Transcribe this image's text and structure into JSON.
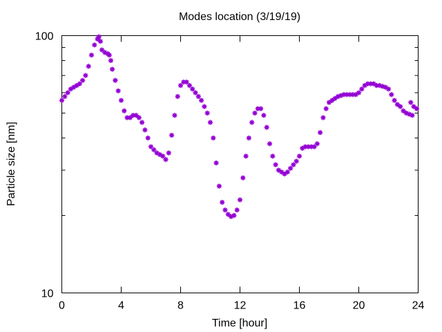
{
  "chart_data": {
    "type": "scatter",
    "title": "Modes location (3/19/19)",
    "xlabel": "Time [hour]",
    "ylabel": "Particle size [nm]",
    "xlim": [
      0,
      24
    ],
    "ylim": [
      10,
      100
    ],
    "yscale": "log",
    "xticks": [
      0,
      4,
      8,
      12,
      16,
      20,
      24
    ],
    "xtick_labels": [
      "0",
      "4",
      "8",
      "12",
      "16",
      "20",
      "24"
    ],
    "yticks": [
      10,
      100
    ],
    "ytick_labels": [
      "10",
      "100"
    ],
    "grid": false,
    "marker": "asterisk",
    "color": "#9400d3",
    "series": [
      {
        "name": "",
        "points": [
          [
            0.0,
            56
          ],
          [
            0.2,
            58
          ],
          [
            0.4,
            60
          ],
          [
            0.6,
            62
          ],
          [
            0.8,
            63
          ],
          [
            1.0,
            64
          ],
          [
            1.2,
            65
          ],
          [
            1.4,
            67
          ],
          [
            1.6,
            70
          ],
          [
            1.8,
            76
          ],
          [
            2.0,
            84
          ],
          [
            2.2,
            92
          ],
          [
            2.4,
            97
          ],
          [
            2.5,
            99
          ],
          [
            2.6,
            95
          ],
          [
            2.7,
            88
          ],
          [
            2.9,
            86
          ],
          [
            3.1,
            85
          ],
          [
            3.2,
            84
          ],
          [
            3.3,
            80
          ],
          [
            3.4,
            74
          ],
          [
            3.6,
            67
          ],
          [
            3.8,
            61
          ],
          [
            4.0,
            56
          ],
          [
            4.2,
            51
          ],
          [
            4.4,
            48
          ],
          [
            4.6,
            48
          ],
          [
            4.8,
            49
          ],
          [
            5.0,
            49
          ],
          [
            5.2,
            48
          ],
          [
            5.4,
            46
          ],
          [
            5.6,
            43
          ],
          [
            5.8,
            40
          ],
          [
            6.0,
            37
          ],
          [
            6.2,
            36
          ],
          [
            6.4,
            35
          ],
          [
            6.6,
            34.5
          ],
          [
            6.8,
            34
          ],
          [
            7.0,
            33
          ],
          [
            7.2,
            35
          ],
          [
            7.4,
            41
          ],
          [
            7.6,
            49
          ],
          [
            7.8,
            58
          ],
          [
            8.0,
            64
          ],
          [
            8.2,
            66
          ],
          [
            8.4,
            66
          ],
          [
            8.6,
            64
          ],
          [
            8.8,
            62
          ],
          [
            9.0,
            60
          ],
          [
            9.2,
            58
          ],
          [
            9.4,
            56
          ],
          [
            9.6,
            53
          ],
          [
            9.8,
            50
          ],
          [
            10.0,
            46
          ],
          [
            10.2,
            40
          ],
          [
            10.4,
            32
          ],
          [
            10.6,
            26
          ],
          [
            10.8,
            22.5
          ],
          [
            11.0,
            21
          ],
          [
            11.2,
            20.2
          ],
          [
            11.4,
            19.8
          ],
          [
            11.6,
            20
          ],
          [
            11.8,
            21
          ],
          [
            12.0,
            23
          ],
          [
            12.2,
            28
          ],
          [
            12.4,
            34
          ],
          [
            12.6,
            40
          ],
          [
            12.8,
            46
          ],
          [
            13.0,
            50
          ],
          [
            13.2,
            52
          ],
          [
            13.4,
            52
          ],
          [
            13.6,
            49
          ],
          [
            13.8,
            44
          ],
          [
            14.0,
            38
          ],
          [
            14.2,
            34
          ],
          [
            14.4,
            31.5
          ],
          [
            14.6,
            30
          ],
          [
            14.8,
            29.5
          ],
          [
            15.0,
            29
          ],
          [
            15.2,
            29.5
          ],
          [
            15.4,
            30.5
          ],
          [
            15.6,
            31.5
          ],
          [
            15.8,
            32.5
          ],
          [
            16.0,
            34
          ],
          [
            16.2,
            36.5
          ],
          [
            16.4,
            37
          ],
          [
            16.6,
            37
          ],
          [
            16.8,
            37
          ],
          [
            17.0,
            37
          ],
          [
            17.2,
            38
          ],
          [
            17.4,
            42
          ],
          [
            17.6,
            48
          ],
          [
            17.8,
            52
          ],
          [
            18.0,
            55
          ],
          [
            18.2,
            56
          ],
          [
            18.4,
            57
          ],
          [
            18.6,
            58
          ],
          [
            18.8,
            58.5
          ],
          [
            19.0,
            59
          ],
          [
            19.2,
            59
          ],
          [
            19.4,
            59
          ],
          [
            19.6,
            59
          ],
          [
            19.8,
            59
          ],
          [
            20.0,
            60
          ],
          [
            20.2,
            62
          ],
          [
            20.4,
            64
          ],
          [
            20.6,
            65
          ],
          [
            20.8,
            65
          ],
          [
            21.0,
            65
          ],
          [
            21.2,
            64
          ],
          [
            21.4,
            64
          ],
          [
            21.6,
            63.5
          ],
          [
            21.8,
            63
          ],
          [
            22.0,
            62
          ],
          [
            22.2,
            59
          ],
          [
            22.4,
            56
          ],
          [
            22.6,
            54
          ],
          [
            22.8,
            53
          ],
          [
            23.0,
            51
          ],
          [
            23.2,
            50
          ],
          [
            23.4,
            49.5
          ],
          [
            23.6,
            49
          ],
          [
            23.5,
            55
          ],
          [
            23.7,
            53
          ],
          [
            23.9,
            52
          ]
        ]
      }
    ]
  }
}
